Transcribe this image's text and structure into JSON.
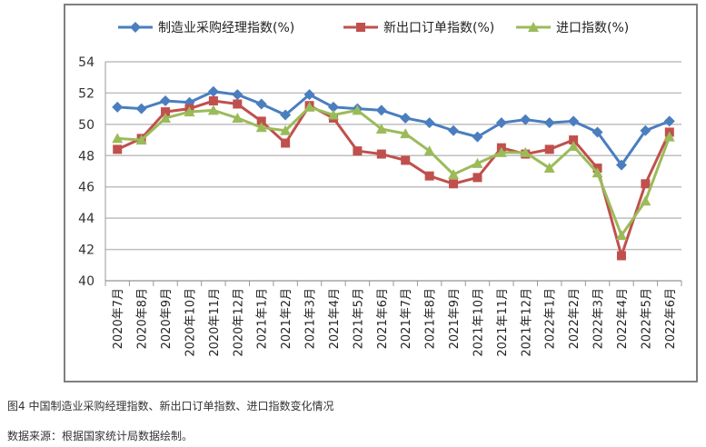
{
  "chart_data": {
    "type": "line",
    "categories": [
      "2020年7月",
      "2020年8月",
      "2020年9月",
      "2020年10月",
      "2020年11月",
      "2020年12月",
      "2021年1月",
      "2021年2月",
      "2021年3月",
      "2021年4月",
      "2021年5月",
      "2021年6月",
      "2021年7月",
      "2021年8月",
      "2021年9月",
      "2021年10月",
      "2021年11月",
      "2021年12月",
      "2022年1月",
      "2022年2月",
      "2022年3月",
      "2022年4月",
      "2022年5月",
      "2022年6月"
    ],
    "series": [
      {
        "name": "制造业采购经理指数(%)",
        "color": "#4a7ebf",
        "marker": "diamond",
        "values": [
          51.1,
          51.0,
          51.5,
          51.4,
          52.1,
          51.9,
          51.3,
          50.6,
          51.9,
          51.1,
          51.0,
          50.9,
          50.4,
          50.1,
          49.6,
          49.2,
          50.1,
          50.3,
          50.1,
          50.2,
          49.5,
          47.4,
          49.6,
          50.2
        ]
      },
      {
        "name": "新出口订单指数(%)",
        "color": "#c0504d",
        "marker": "square",
        "values": [
          48.4,
          49.1,
          50.8,
          51.0,
          51.5,
          51.3,
          50.2,
          48.8,
          51.2,
          50.4,
          48.3,
          48.1,
          47.7,
          46.7,
          46.2,
          46.6,
          48.5,
          48.1,
          48.4,
          49.0,
          47.2,
          41.6,
          46.2,
          49.5
        ]
      },
      {
        "name": "进口指数(%)",
        "color": "#9bbb59",
        "marker": "triangle",
        "values": [
          49.1,
          49.0,
          50.4,
          50.8,
          50.9,
          50.4,
          49.8,
          49.6,
          51.1,
          50.6,
          50.9,
          49.7,
          49.4,
          48.3,
          46.8,
          47.5,
          48.2,
          48.2,
          47.2,
          48.6,
          46.9,
          42.9,
          45.1,
          49.2
        ]
      }
    ],
    "ylim": [
      40,
      54
    ],
    "yticks": [
      "40",
      "42",
      "44",
      "46",
      "48",
      "50",
      "52",
      "54"
    ],
    "grid": true,
    "legend": "top"
  },
  "caption": "图4 中国制造业采购经理指数、新出口订单指数、进口指数变化情况",
  "source": "数据来源：根据国家统计局数据绘制。"
}
